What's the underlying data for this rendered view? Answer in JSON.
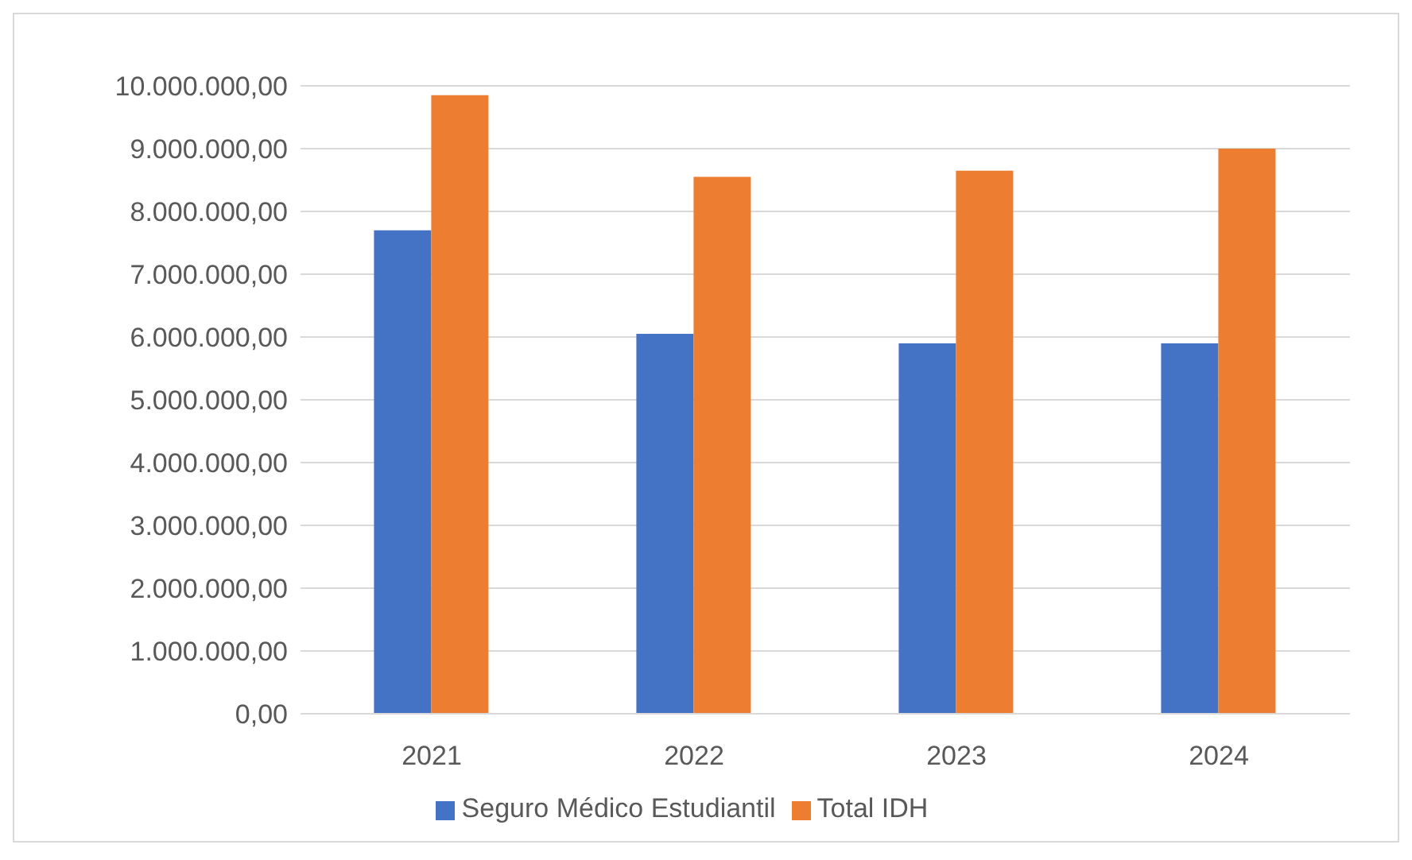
{
  "chart_data": {
    "type": "bar",
    "categories": [
      "2021",
      "2022",
      "2023",
      "2024"
    ],
    "series": [
      {
        "name": "Seguro Médico Estudiantil",
        "color": "#4472c4",
        "values": [
          7700000,
          6050000,
          5900000,
          5900000
        ]
      },
      {
        "name": "Total IDH",
        "color": "#ed7d31",
        "values": [
          9850000,
          8550000,
          8650000,
          9000000
        ]
      }
    ],
    "ylim": [
      0,
      10000000
    ],
    "yticks": [
      {
        "value": 0,
        "label": "0,00"
      },
      {
        "value": 1000000,
        "label": "1.000.000,00"
      },
      {
        "value": 2000000,
        "label": "2.000.000,00"
      },
      {
        "value": 3000000,
        "label": "3.000.000,00"
      },
      {
        "value": 4000000,
        "label": "4.000.000,00"
      },
      {
        "value": 5000000,
        "label": "5.000.000,00"
      },
      {
        "value": 6000000,
        "label": "6.000.000,00"
      },
      {
        "value": 7000000,
        "label": "7.000.000,00"
      },
      {
        "value": 8000000,
        "label": "8.000.000,00"
      },
      {
        "value": 9000000,
        "label": "9.000.000,00"
      },
      {
        "value": 10000000,
        "label": "10.000.000,00"
      }
    ],
    "grid": "y",
    "legend": "bottom"
  }
}
